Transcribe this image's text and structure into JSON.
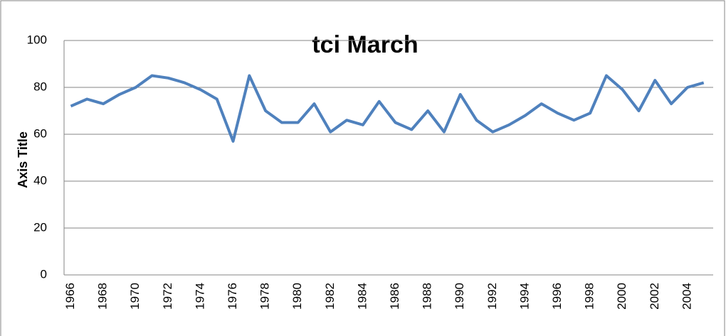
{
  "chart_data": {
    "type": "line",
    "title": "tci March",
    "y_label": "Axis Title",
    "categories": [
      "1966",
      null,
      "1968",
      null,
      "1970",
      null,
      "1972",
      null,
      "1974",
      null,
      "1976",
      null,
      "1978",
      null,
      "1980",
      null,
      "1982",
      null,
      "1984",
      null,
      "1986",
      null,
      "1988",
      null,
      "1990",
      null,
      "1992",
      null,
      "1994",
      null,
      "1996",
      null,
      "1998",
      null,
      "2000",
      null,
      "2002",
      null,
      "2004",
      null
    ],
    "values": [
      72,
      75,
      73,
      77,
      80,
      85,
      84,
      82,
      79,
      75,
      57,
      85,
      70,
      65,
      65,
      73,
      61,
      66,
      64,
      74,
      65,
      62,
      70,
      61,
      77,
      66,
      61,
      64,
      68,
      73,
      69,
      66,
      69,
      85,
      79,
      70,
      83,
      73,
      80,
      82
    ],
    "color": "#4f81bd",
    "ylim": [
      0,
      100
    ],
    "yticks": [
      0,
      20,
      40,
      60,
      80,
      100
    ],
    "grid": true
  }
}
